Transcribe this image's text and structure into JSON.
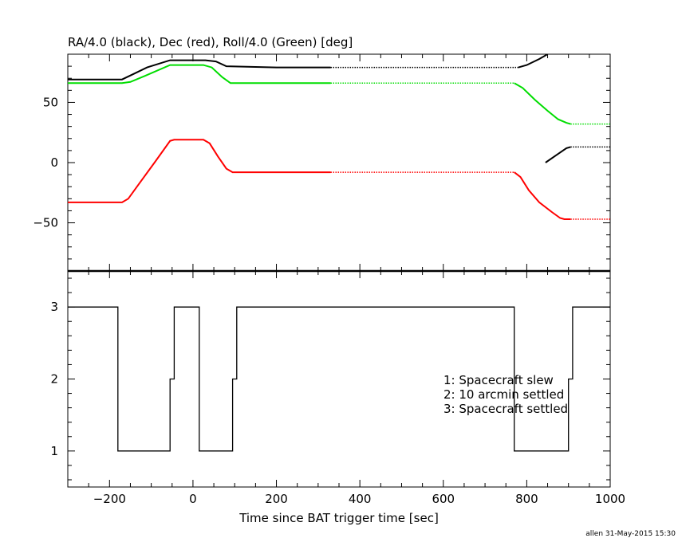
{
  "chart_data": [
    {
      "type": "line",
      "title": "RA/4.0 (black), Dec (red), Roll/4.0 (Green) [deg]",
      "xlim": [
        -300,
        1000
      ],
      "ylim": [
        -90,
        90
      ],
      "x_ticks": [
        -200,
        0,
        200,
        400,
        600,
        800,
        1000
      ],
      "y_ticks": [
        -50,
        0,
        50
      ],
      "y_tick_labels": [
        "−50",
        "0",
        "50"
      ],
      "series": [
        {
          "color": "#000000",
          "segments": [
            {
              "style": "solid",
              "points": [
                [
                  -300,
                  69
                ],
                [
                  -170,
                  69
                ],
                [
                  -140,
                  74
                ],
                [
                  -110,
                  79
                ],
                [
                  -55,
                  85
                ],
                [
                  30,
                  85
                ],
                [
                  55,
                  84
                ],
                [
                  80,
                  80
                ],
                [
                  200,
                  79
                ],
                [
                  330,
                  79
                ]
              ]
            },
            {
              "style": "dotted",
              "points": [
                [
                  330,
                  79
                ],
                [
                  780,
                  79
                ]
              ]
            },
            {
              "style": "solid",
              "points": [
                [
                  780,
                  79
                ],
                [
                  800,
                  81
                ],
                [
                  830,
                  86
                ],
                [
                  850,
                  90
                ]
              ]
            },
            {
              "style": "solid",
              "points": [
                [
                  845,
                  0
                ],
                [
                  870,
                  6
                ],
                [
                  895,
                  12
                ],
                [
                  905,
                  13
                ]
              ]
            },
            {
              "style": "dotted",
              "points": [
                [
                  905,
                  13
                ],
                [
                  1000,
                  13
                ]
              ]
            }
          ]
        },
        {
          "color": "#ff0000",
          "segments": [
            {
              "style": "solid",
              "points": [
                [
                  -300,
                  -33
                ],
                [
                  -170,
                  -33
                ],
                [
                  -155,
                  -30
                ],
                [
                  -130,
                  -18
                ],
                [
                  -90,
                  1
                ],
                [
                  -55,
                  18
                ],
                [
                  -45,
                  19
                ],
                [
                  25,
                  19
                ],
                [
                  40,
                  16
                ],
                [
                  60,
                  5
                ],
                [
                  80,
                  -5
                ],
                [
                  95,
                  -8
                ],
                [
                  200,
                  -8
                ],
                [
                  330,
                  -8
                ]
              ]
            },
            {
              "style": "dotted",
              "points": [
                [
                  330,
                  -8
                ],
                [
                  770,
                  -8
                ]
              ]
            },
            {
              "style": "solid",
              "points": [
                [
                  770,
                  -8
                ],
                [
                  785,
                  -12
                ],
                [
                  805,
                  -23
                ],
                [
                  830,
                  -33
                ],
                [
                  860,
                  -41
                ],
                [
                  880,
                  -46
                ],
                [
                  890,
                  -47
                ],
                [
                  905,
                  -47
                ]
              ]
            },
            {
              "style": "dotted",
              "points": [
                [
                  905,
                  -47
                ],
                [
                  1000,
                  -47
                ]
              ]
            }
          ]
        },
        {
          "color": "#00dd00",
          "segments": [
            {
              "style": "solid",
              "points": [
                [
                  -300,
                  66
                ],
                [
                  -170,
                  66
                ],
                [
                  -150,
                  67
                ],
                [
                  -115,
                  72
                ],
                [
                  -55,
                  81
                ],
                [
                  25,
                  81
                ],
                [
                  45,
                  79
                ],
                [
                  70,
                  71
                ],
                [
                  90,
                  66
                ],
                [
                  200,
                  66
                ],
                [
                  330,
                  66
                ]
              ]
            },
            {
              "style": "dotted",
              "points": [
                [
                  330,
                  66
                ],
                [
                  770,
                  66
                ]
              ]
            },
            {
              "style": "solid",
              "points": [
                [
                  770,
                  66
                ],
                [
                  790,
                  62
                ],
                [
                  820,
                  52
                ],
                [
                  850,
                  43
                ],
                [
                  875,
                  36
                ],
                [
                  895,
                  33
                ],
                [
                  905,
                  32
                ]
              ]
            },
            {
              "style": "dotted",
              "points": [
                [
                  905,
                  32
                ],
                [
                  1000,
                  32
                ]
              ]
            }
          ]
        }
      ]
    },
    {
      "type": "line",
      "step": true,
      "xlabel": "Time since BAT trigger time [sec]",
      "xlim": [
        -300,
        1000
      ],
      "ylim": [
        0.5,
        3.5
      ],
      "x_ticks": [
        -200,
        0,
        200,
        400,
        600,
        800,
        1000
      ],
      "x_tick_labels": [
        "−200",
        "0",
        "200",
        "400",
        "600",
        "800",
        "1000"
      ],
      "y_ticks": [
        1,
        2,
        3
      ],
      "y_tick_labels": [
        "1",
        "2",
        "3"
      ],
      "series": [
        {
          "color": "#000000",
          "points": [
            [
              -300,
              3
            ],
            [
              -180,
              3
            ],
            [
              -180,
              1
            ],
            [
              -55,
              1
            ],
            [
              -55,
              2
            ],
            [
              -45,
              2
            ],
            [
              -45,
              3
            ],
            [
              15,
              3
            ],
            [
              15,
              1
            ],
            [
              95,
              1
            ],
            [
              95,
              2
            ],
            [
              105,
              2
            ],
            [
              105,
              3
            ],
            [
              770,
              3
            ],
            [
              770,
              1
            ],
            [
              900,
              1
            ],
            [
              900,
              2
            ],
            [
              910,
              2
            ],
            [
              910,
              3
            ],
            [
              1000,
              3
            ]
          ]
        }
      ],
      "legend": [
        "1: Spacecraft slew",
        "2: 10 arcmin settled",
        "3: Spacecraft settled"
      ],
      "legend_position": "center-right"
    }
  ],
  "footer": "allen 31-May-2015 15:30"
}
